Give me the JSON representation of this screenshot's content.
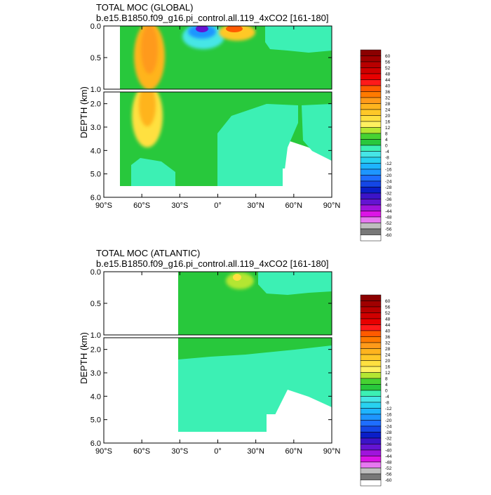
{
  "chart_data": [
    {
      "type": "heatmap",
      "title": "TOTAL MOC (GLOBAL)",
      "subtitle": "b.e15.B1850.f09_g16.pi_control.all.119_4xCO2 [161-180]",
      "ylabel": "DEPTH (km)",
      "xlim": [
        -90,
        90
      ],
      "ylim": [
        0,
        6
      ],
      "upper_panel_depth_ticks": [
        {
          "v": 0.0,
          "label": "0.0"
        },
        {
          "v": 0.5,
          "label": "0.5"
        },
        {
          "v": 1.0,
          "label": "1.0"
        }
      ],
      "lower_panel_depth_ticks": [
        {
          "v": 2.0,
          "label": "2.0"
        },
        {
          "v": 3.0,
          "label": "3.0"
        },
        {
          "v": 4.0,
          "label": "4.0"
        },
        {
          "v": 5.0,
          "label": "5.0"
        },
        {
          "v": 6.0,
          "label": "6.0"
        }
      ],
      "lat_ticks": [
        {
          "v": -90,
          "label": "90°S"
        },
        {
          "v": -60,
          "label": "60°S"
        },
        {
          "v": -30,
          "label": "30°S"
        },
        {
          "v": 0,
          "label": "0°"
        },
        {
          "v": 30,
          "label": "30°N"
        },
        {
          "v": 60,
          "label": "60°N"
        },
        {
          "v": 90,
          "label": "90°N"
        }
      ],
      "domain_lat_range": [
        -78,
        90
      ],
      "features": [
        {
          "name": "southern-cell",
          "lat": -55,
          "depth_km": 0.4,
          "value": 24
        },
        {
          "name": "surface-negative-cell",
          "lat": -12,
          "depth_km": 0.0,
          "value": -36
        },
        {
          "name": "surface-positive-cell",
          "lat": 12,
          "depth_km": 0.0,
          "value": 28
        },
        {
          "name": "deep-negative-cell",
          "lat": 25,
          "depth_km": 4.0,
          "value": -4
        }
      ]
    },
    {
      "type": "heatmap",
      "title": "TOTAL MOC (ATLANTIC)",
      "subtitle": "b.e15.B1850.f09_g16.pi_control.all.119_4xCO2 [161-180]",
      "ylabel": "DEPTH (km)",
      "xlim": [
        -90,
        90
      ],
      "ylim": [
        0,
        6
      ],
      "upper_panel_depth_ticks": [
        {
          "v": 0.0,
          "label": "0.0"
        },
        {
          "v": 0.5,
          "label": "0.5"
        },
        {
          "v": 1.0,
          "label": "1.0"
        }
      ],
      "lower_panel_depth_ticks": [
        {
          "v": 2.0,
          "label": "2.0"
        },
        {
          "v": 3.0,
          "label": "3.0"
        },
        {
          "v": 4.0,
          "label": "4.0"
        },
        {
          "v": 5.0,
          "label": "5.0"
        },
        {
          "v": 6.0,
          "label": "6.0"
        }
      ],
      "lat_ticks": [
        {
          "v": -90,
          "label": "90°S"
        },
        {
          "v": -60,
          "label": "60°S"
        },
        {
          "v": -30,
          "label": "30°S"
        },
        {
          "v": 0,
          "label": "0°"
        },
        {
          "v": 30,
          "label": "30°N"
        },
        {
          "v": 60,
          "label": "60°N"
        },
        {
          "v": 90,
          "label": "90°N"
        }
      ],
      "domain_lat_range": [
        -34,
        90
      ],
      "features": [
        {
          "name": "upper-overturning-cell",
          "lat": 15,
          "depth_km": 0.1,
          "value": 16
        },
        {
          "name": "deep-return-flow",
          "lat": 10,
          "depth_km": 3.5,
          "value": -4
        }
      ]
    }
  ],
  "colorbar": {
    "labels": [
      "60",
      "56",
      "52",
      "48",
      "44",
      "40",
      "36",
      "32",
      "28",
      "24",
      "20",
      "16",
      "12",
      "8",
      "4",
      "0",
      "-4",
      "-8",
      "-12",
      "-16",
      "-20",
      "-24",
      "-28",
      "-32",
      "-36",
      "-40",
      "-44",
      "-48",
      "-52",
      "-56",
      "-60"
    ],
    "colors": [
      "#8B0000",
      "#A00000",
      "#B80000",
      "#D00000",
      "#E80000",
      "#FF1A1A",
      "#FF5A00",
      "#FF7A00",
      "#FF9A1A",
      "#FFB41E",
      "#FFC828",
      "#FFE040",
      "#FFF060",
      "#B4E632",
      "#46D232",
      "#28C83C",
      "#3CF0B4",
      "#46E6E6",
      "#28D2F0",
      "#1EB4FF",
      "#1E96FF",
      "#1E6EFF",
      "#1446E6",
      "#0A1EC8",
      "#3C14C8",
      "#6414D2",
      "#A014DC",
      "#DC14E6",
      "#E678F0",
      "#BEBEBE",
      "#787878",
      "#FFFFFF"
    ]
  }
}
